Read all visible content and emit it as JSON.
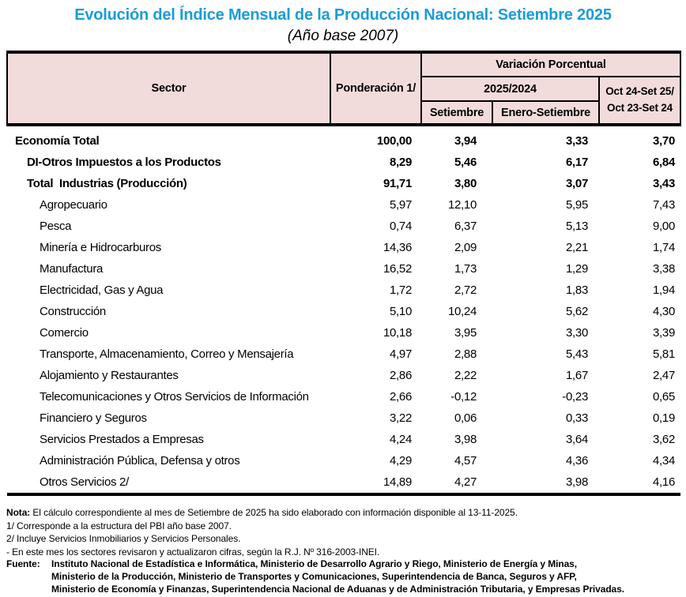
{
  "colors": {
    "title-color": "#1B9CD9",
    "header-bg": "#F2DCDB",
    "border-color": "#000000"
  },
  "title": "Evolución del Índice Mensual de la Producción Nacional: Setiembre 2025",
  "subtitle": "(Año base 2007)",
  "table": {
    "headers": {
      "sector": "Sector",
      "ponderacion": "Ponderación 1/",
      "variacion": "Variación Porcentual",
      "period": "2025/2024",
      "setiembre": "Setiembre",
      "enero_setiembre": "Enero-Setiembre",
      "oct_line1": "Oct 24-Set 25/",
      "oct_line2": "Oct 23-Set 24"
    },
    "rows": [
      {
        "level": 0,
        "bold": true,
        "sector": "Economía Total",
        "ponderacion": "100,00",
        "setiembre": "3,94",
        "enero_setiembre": "3,33",
        "oct": "3,70"
      },
      {
        "level": 1,
        "bold": true,
        "sector": "DI-Otros Impuestos a los Productos",
        "ponderacion": "8,29",
        "setiembre": "5,46",
        "enero_setiembre": "6,17",
        "oct": "6,84"
      },
      {
        "level": 1,
        "bold": true,
        "sector": "Total  Industrias (Producción)",
        "ponderacion": "91,71",
        "setiembre": "3,80",
        "enero_setiembre": "3,07",
        "oct": "3,43"
      },
      {
        "level": 2,
        "bold": false,
        "sector": "Agropecuario",
        "ponderacion": "5,97",
        "setiembre": "12,10",
        "enero_setiembre": "5,95",
        "oct": "7,43"
      },
      {
        "level": 2,
        "bold": false,
        "sector": "Pesca",
        "ponderacion": "0,74",
        "setiembre": "6,37",
        "enero_setiembre": "5,13",
        "oct": "9,00"
      },
      {
        "level": 2,
        "bold": false,
        "sector": "Minería e Hidrocarburos",
        "ponderacion": "14,36",
        "setiembre": "2,09",
        "enero_setiembre": "2,21",
        "oct": "1,74"
      },
      {
        "level": 2,
        "bold": false,
        "sector": "Manufactura",
        "ponderacion": "16,52",
        "setiembre": "1,73",
        "enero_setiembre": "1,29",
        "oct": "3,38"
      },
      {
        "level": 2,
        "bold": false,
        "sector": "Electricidad, Gas y Agua",
        "ponderacion": "1,72",
        "setiembre": "2,72",
        "enero_setiembre": "1,83",
        "oct": "1,94"
      },
      {
        "level": 2,
        "bold": false,
        "sector": "Construcción",
        "ponderacion": "5,10",
        "setiembre": "10,24",
        "enero_setiembre": "5,62",
        "oct": "4,30"
      },
      {
        "level": 2,
        "bold": false,
        "sector": "Comercio",
        "ponderacion": "10,18",
        "setiembre": "3,95",
        "enero_setiembre": "3,30",
        "oct": "3,39"
      },
      {
        "level": 2,
        "bold": false,
        "sector": "Transporte, Almacenamiento, Correo y Mensajería",
        "ponderacion": "4,97",
        "setiembre": "2,88",
        "enero_setiembre": "5,43",
        "oct": "5,81"
      },
      {
        "level": 2,
        "bold": false,
        "sector": "Alojamiento y Restaurantes",
        "ponderacion": "2,86",
        "setiembre": "2,22",
        "enero_setiembre": "1,67",
        "oct": "2,47"
      },
      {
        "level": 2,
        "bold": false,
        "sector": "Telecomunicaciones y Otros Servicios de Información",
        "ponderacion": "2,66",
        "setiembre": "-0,12",
        "enero_setiembre": "-0,23",
        "oct": "0,65"
      },
      {
        "level": 2,
        "bold": false,
        "sector": "Financiero y Seguros",
        "ponderacion": "3,22",
        "setiembre": "0,06",
        "enero_setiembre": "0,33",
        "oct": "0,19"
      },
      {
        "level": 2,
        "bold": false,
        "sector": "Servicios Prestados a Empresas",
        "ponderacion": "4,24",
        "setiembre": "3,98",
        "enero_setiembre": "3,64",
        "oct": "3,62"
      },
      {
        "level": 2,
        "bold": false,
        "sector": "Administración Pública, Defensa y otros",
        "ponderacion": "4,29",
        "setiembre": "4,57",
        "enero_setiembre": "4,36",
        "oct": "4,34"
      },
      {
        "level": 2,
        "bold": false,
        "sector": "Otros Servicios 2/",
        "ponderacion": "14,89",
        "setiembre": "4,27",
        "enero_setiembre": "3,98",
        "oct": "4,16"
      }
    ]
  },
  "notes": {
    "nota_label": "Nota:",
    "nota_text": " El cálculo correspondiente al mes de Setiembre de 2025 ha sido elaborado con información disponible al 13-11-2025.",
    "line1": "1/ Corresponde a la estructura del PBI año base 2007.",
    "line2": "2/ Incluye Servicios Inmobiliarios y Servicios Personales.",
    "line3": "- En este mes los sectores revisaron y actualizaron cifras, según la R.J. Nº 316-2003-INEI."
  },
  "fuente": {
    "label": "Fuente:",
    "lines": [
      "Instituto Nacional de Estadística e Informática, Ministerio de Desarrollo Agrario y Riego, Ministerio de Energía y Minas,",
      "Ministerio de la Producción, Ministerio de Transportes y Comunicaciones, Superintendencia de Banca, Seguros y AFP,",
      "Ministerio de Economía y Finanzas, Superintendencia Nacional de Aduanas y de Administración Tributaria, y Empresas Privadas."
    ]
  }
}
